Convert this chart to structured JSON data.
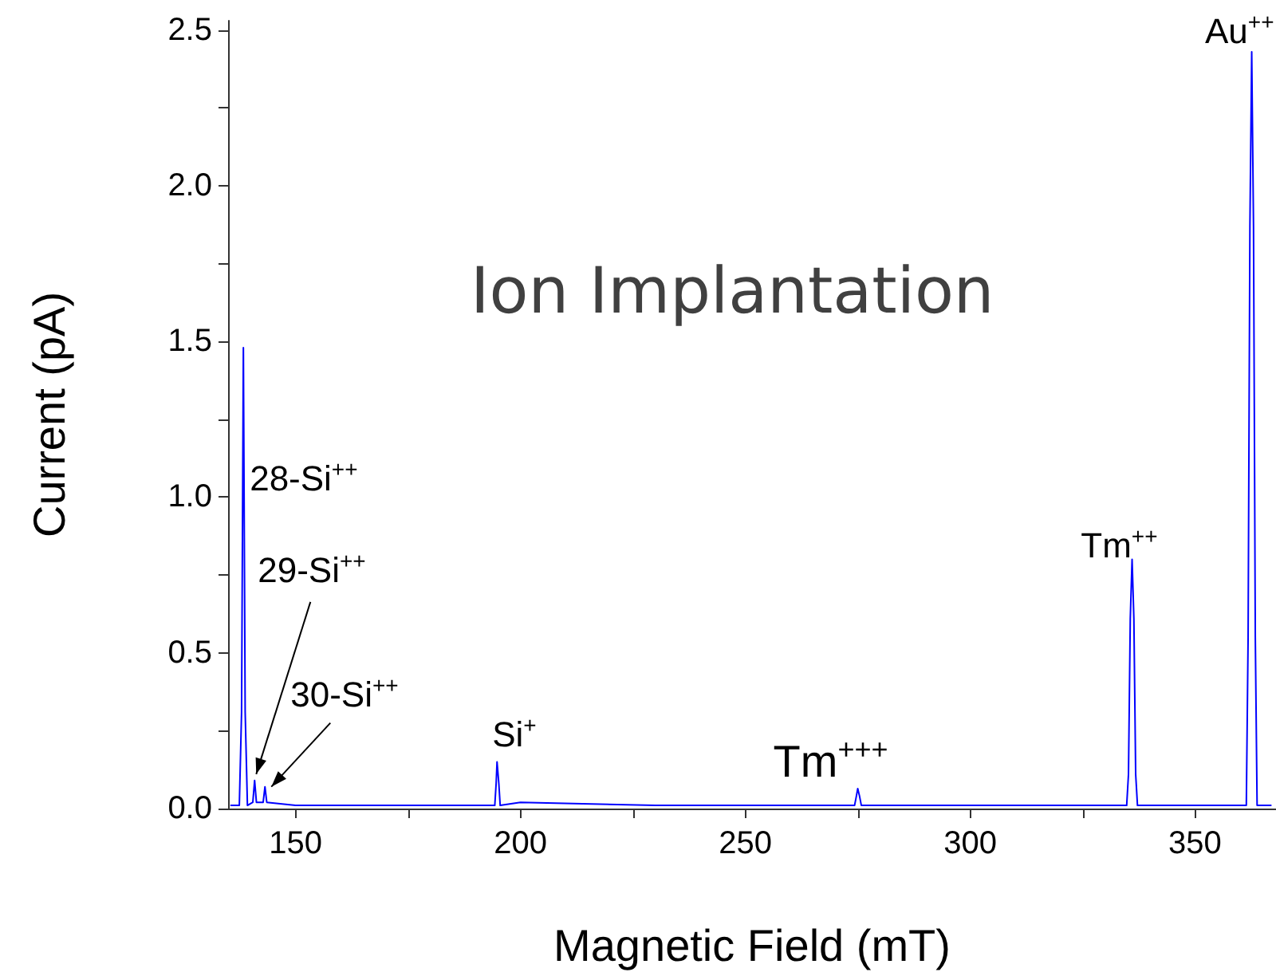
{
  "chart_data": {
    "type": "line",
    "title": "Ion Implantation",
    "xlabel": "Magnetic Field (mT)",
    "ylabel": "Current (pA)",
    "x": [
      135.5,
      137.5,
      138.0,
      138.4,
      138.8,
      139.3,
      140.5,
      140.9,
      141.3,
      142.8,
      143.2,
      143.6,
      150,
      170,
      190,
      194.3,
      194.6,
      194.8,
      195.2,
      195.5,
      200,
      230,
      260,
      274.3,
      274.7,
      275.0,
      275.4,
      275.8,
      300,
      334.8,
      335.2,
      335.6,
      336.0,
      336.4,
      336.8,
      337.2,
      361.4,
      361.8,
      362.2,
      362.6,
      363.0,
      363.4,
      363.8,
      367
    ],
    "series": [
      {
        "color": "#0000ff",
        "values": [
          0.01,
          0.01,
          0.31,
          1.48,
          0.31,
          0.01,
          0.02,
          0.09,
          0.02,
          0.02,
          0.07,
          0.02,
          0.01,
          0.01,
          0.01,
          0.01,
          0.08,
          0.15,
          0.08,
          0.01,
          0.02,
          0.01,
          0.01,
          0.01,
          0.04,
          0.064,
          0.04,
          0.01,
          0.01,
          0.01,
          0.11,
          0.61,
          0.8,
          0.61,
          0.11,
          0.01,
          0.01,
          0.55,
          1.87,
          2.43,
          1.87,
          0.55,
          0.01,
          0.01
        ]
      }
    ],
    "xlim": [
      135,
      368
    ],
    "xticks": [
      150,
      {
        "value": 175,
        "label": null
      },
      200,
      {
        "value": 225,
        "label": null
      },
      250,
      {
        "value": 275,
        "label": null
      },
      300,
      {
        "value": 325,
        "label": null
      },
      350
    ],
    "ylim": [
      0,
      2.53
    ],
    "yticks": [
      {
        "value": 0,
        "label": "0.0"
      },
      {
        "value": 0.25,
        "label": null
      },
      0.5,
      {
        "value": 0.75,
        "label": null
      },
      {
        "value": 1,
        "label": "1.0"
      },
      {
        "value": 1.25,
        "label": null
      },
      1.5,
      {
        "value": 1.75,
        "label": null
      },
      {
        "value": 2,
        "label": "2.0"
      },
      {
        "value": 2.25,
        "label": null
      },
      2.5
    ],
    "annotations": [
      {
        "text": "28-Si$^{++}$",
        "x": 138.4,
        "y": 1.1
      },
      {
        "text": "29-Si$^{++}$",
        "x": 140.9,
        "y": 0.09
      },
      {
        "text": "30-Si$^{++}$",
        "x": 143.2,
        "y": 0.07
      },
      {
        "text": "Si$^{+}$",
        "x": 194.8,
        "y": 0.15
      },
      {
        "text": "Tm$^{+++}$",
        "x": 275.0,
        "y": 0.064
      },
      {
        "text": "Tm$^{++}$",
        "x": 336.0,
        "y": 0.8
      },
      {
        "text": "Au$^{++}$",
        "x": 362.6,
        "y": 2.43
      }
    ],
    "marker": "none",
    "line_style": "solid"
  }
}
